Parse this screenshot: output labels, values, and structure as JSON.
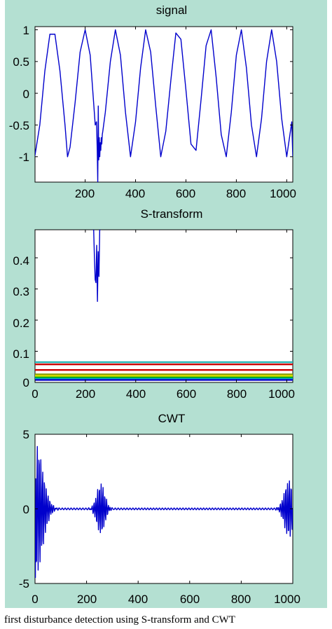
{
  "background_color": "#b4e0d2",
  "line_color": "#0000cc",
  "chart_data": [
    {
      "type": "line",
      "title": "signal",
      "xlim": [
        1,
        1024
      ],
      "ylim": [
        -1.4,
        1.05
      ],
      "xticks": [
        200,
        400,
        600,
        800,
        1000
      ],
      "xtick_labels": [
        "200",
        "400",
        "600",
        "800",
        "1000"
      ],
      "yticks": [
        1,
        0.5,
        0,
        -0.5,
        -1
      ],
      "ytick_labels": [
        "1",
        "0.5",
        "0",
        "-0.5",
        "-1"
      ],
      "series": [
        {
          "color": "#0000cc",
          "x": [
            0,
            20,
            40,
            60,
            80,
            100,
            120,
            130,
            140,
            160,
            180,
            200,
            220,
            240,
            245,
            248,
            250,
            252,
            254,
            256,
            258,
            260,
            262,
            264,
            266,
            268,
            270,
            280,
            300,
            320,
            340,
            360,
            380,
            400,
            420,
            440,
            460,
            480,
            500,
            520,
            540,
            560,
            580,
            600,
            620,
            640,
            660,
            680,
            700,
            720,
            740,
            760,
            780,
            800,
            820,
            840,
            860,
            880,
            900,
            920,
            940,
            960,
            980,
            1000,
            1020,
            1024
          ],
          "y": [
            -1.0,
            -0.5,
            0.35,
            0.93,
            0.93,
            0.35,
            -0.5,
            -1.0,
            -0.85,
            -0.15,
            0.65,
            1.0,
            0.6,
            -0.5,
            -0.45,
            -0.9,
            -1.4,
            -0.2,
            -1.05,
            -0.7,
            -1.0,
            -0.78,
            -0.9,
            -0.7,
            -0.8,
            -0.65,
            -0.6,
            -0.3,
            0.5,
            1.0,
            0.6,
            -0.3,
            -1.0,
            -0.45,
            0.4,
            1.0,
            0.65,
            -0.2,
            -1.0,
            -0.6,
            0.2,
            0.95,
            0.85,
            0.05,
            -0.8,
            -0.9,
            -0.1,
            0.75,
            1.0,
            0.25,
            -0.65,
            -1.0,
            -0.3,
            0.6,
            1.0,
            0.4,
            -0.5,
            -1.0,
            -0.4,
            0.5,
            1.0,
            0.5,
            -0.4,
            -1.0,
            -0.45,
            -1.0
          ]
        }
      ]
    },
    {
      "type": "line",
      "title": "S-transform",
      "xlim": [
        0,
        1024
      ],
      "ylim": [
        0,
        0.49
      ],
      "xticks": [
        0,
        200,
        400,
        600,
        800,
        1000
      ],
      "xtick_labels": [
        "0",
        "200",
        "400",
        "600",
        "800",
        "1000"
      ],
      "yticks": [
        0.4,
        0.3,
        0.2,
        0.1,
        0
      ],
      "ytick_labels": [
        "0.4",
        "0.3",
        "0.2",
        "0.1",
        "0"
      ],
      "series": [
        {
          "color": "#0000cc",
          "x": [
            230,
            233,
            236,
            239,
            242,
            245,
            248,
            251,
            254,
            257,
            260
          ],
          "y": [
            0.49,
            0.49,
            0.4,
            0.33,
            0.32,
            0.44,
            0.26,
            0.42,
            0.34,
            0.49,
            0.49
          ]
        },
        {
          "color": "#20b0b0",
          "x": [
            0,
            1024
          ],
          "y": [
            0.065,
            0.065
          ]
        },
        {
          "color": "#cc0000",
          "x": [
            0,
            1024
          ],
          "y": [
            0.058,
            0.058
          ]
        },
        {
          "color": "#cc0000",
          "x": [
            0,
            1024
          ],
          "y": [
            0.04,
            0.04
          ]
        },
        {
          "color": "#8aa000",
          "x": [
            0,
            1024
          ],
          "y": [
            0.026,
            0.026
          ]
        },
        {
          "color": "#e6e600",
          "x": [
            0,
            1024
          ],
          "y": [
            0.021,
            0.021
          ]
        },
        {
          "color": "#00aa00",
          "x": [
            0,
            1024
          ],
          "y": [
            0.016,
            0.016
          ]
        },
        {
          "color": "#00aacc",
          "x": [
            0,
            1024
          ],
          "y": [
            0.012,
            0.012
          ]
        },
        {
          "color": "#0000cc",
          "x": [
            0,
            1024
          ],
          "y": [
            0.008,
            0.008
          ]
        }
      ]
    },
    {
      "type": "line",
      "title": "CWT",
      "xlim": [
        0,
        1000
      ],
      "ylim": [
        -5,
        5
      ],
      "xticks": [
        0,
        200,
        400,
        600,
        800,
        1000
      ],
      "xtick_labels": [
        "0",
        "200",
        "400",
        "600",
        "800",
        "1000"
      ],
      "yticks": [
        5,
        0,
        -5
      ],
      "ytick_labels": [
        "5",
        "0",
        "-5"
      ],
      "series": [
        {
          "color": "#0000cc",
          "generator": "cwt",
          "bursts": [
            [
              0,
              4.6,
              40
            ],
            [
              255,
              1.7,
              22
            ],
            [
              985,
              1.9,
              25
            ]
          ]
        }
      ]
    }
  ],
  "caption": "first disturbance detection using S-transform and CWT"
}
